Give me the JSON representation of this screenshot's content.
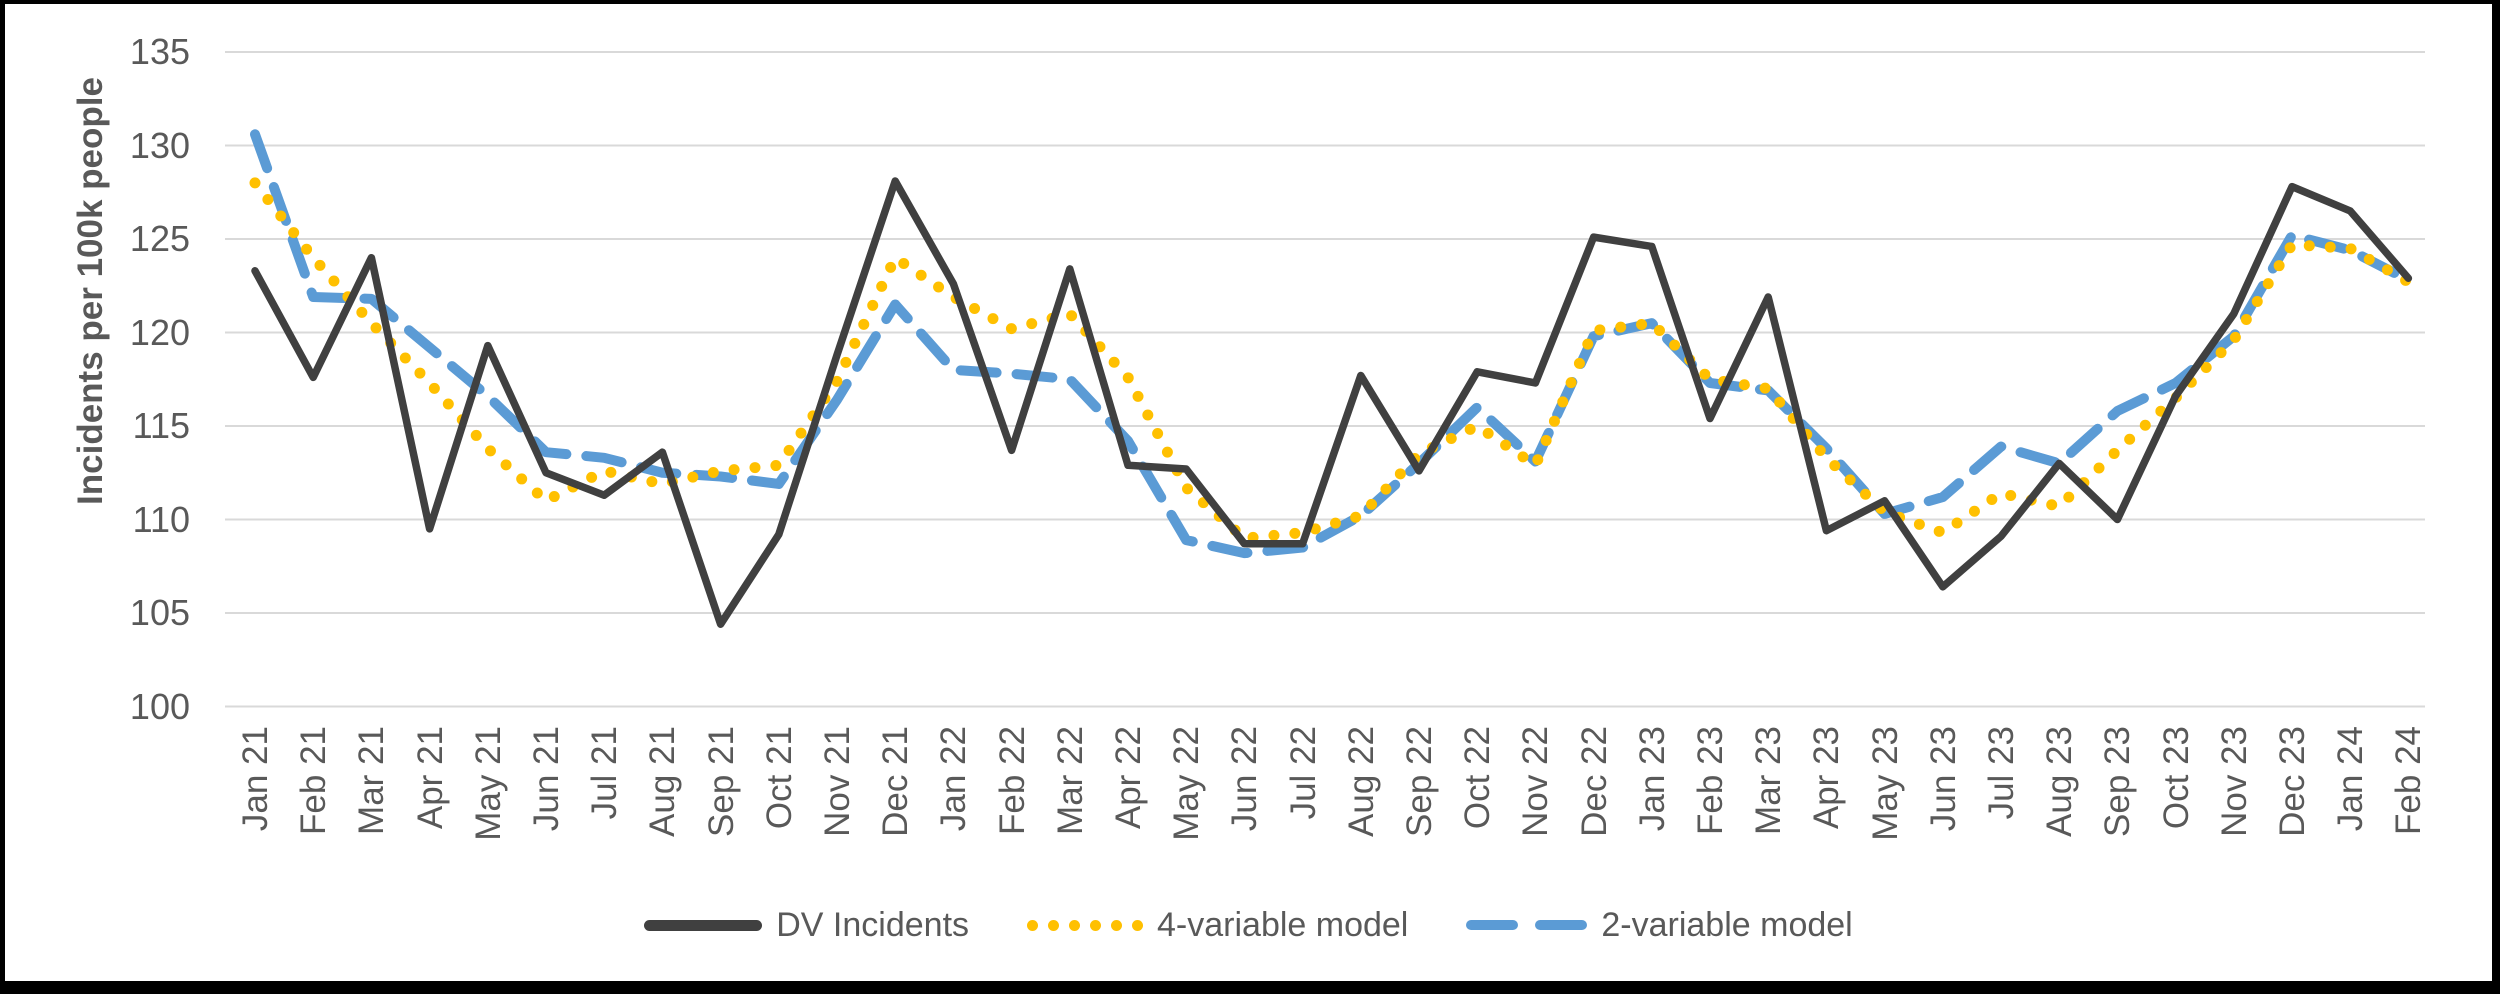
{
  "chart_data": {
    "type": "line",
    "title": "",
    "xlabel": "",
    "ylabel": "Incidents per 100k people",
    "ylim": [
      100,
      135
    ],
    "yticks": [
      135,
      130,
      125,
      120,
      115,
      110,
      105,
      100
    ],
    "grid": true,
    "legend_position": "bottom",
    "categories": [
      "Jan 21",
      "Feb 21",
      "Mar 21",
      "Apr 21",
      "May 21",
      "Jun 21",
      "Jul 21",
      "Aug 21",
      "Sep 21",
      "Oct 21",
      "Nov 21",
      "Dec 21",
      "Jan 22",
      "Feb 22",
      "Mar 22",
      "Apr 22",
      "May 22",
      "Jun 22",
      "Jul 22",
      "Aug 22",
      "Sep 22",
      "Oct 22",
      "Nov 22",
      "Dec 22",
      "Jan 23",
      "Feb 23",
      "Mar 23",
      "Apr 23",
      "May 23",
      "Jun 23",
      "Jul 23",
      "Aug 23",
      "Sep 23",
      "Oct 23",
      "Nov 23",
      "Dec 23",
      "Jan 24",
      "Feb 24"
    ],
    "series": [
      {
        "name": "DV Incidents",
        "style": "solid",
        "color": "#404040",
        "values": [
          123.3,
          117.6,
          124.0,
          109.5,
          119.3,
          112.5,
          111.3,
          113.6,
          104.4,
          109.2,
          118.8,
          128.1,
          122.6,
          113.7,
          123.4,
          112.9,
          112.7,
          108.7,
          108.7,
          117.7,
          112.6,
          117.9,
          117.3,
          125.1,
          124.6,
          115.4,
          121.9,
          109.4,
          111.0,
          106.4,
          109.1,
          113.0,
          110.0,
          116.6,
          121.0,
          127.8,
          126.5,
          122.9
        ]
      },
      {
        "name": "4-variable model",
        "style": "dotted",
        "color": "#FFC000",
        "values": [
          128.0,
          124.0,
          120.5,
          117.3,
          113.8,
          111.0,
          112.6,
          111.9,
          112.6,
          112.9,
          117.4,
          124.0,
          121.9,
          120.2,
          121.0,
          117.6,
          111.7,
          109.0,
          109.3,
          110.2,
          113.5,
          115.0,
          112.9,
          120.1,
          120.5,
          117.5,
          117.0,
          113.3,
          110.4,
          109.3,
          111.4,
          110.7,
          113.7,
          116.5,
          119.6,
          124.7,
          124.5,
          122.7
        ]
      },
      {
        "name": "2-variable model",
        "style": "dashed",
        "color": "#5B9BD5",
        "values": [
          130.6,
          121.9,
          121.8,
          119.2,
          116.6,
          113.6,
          113.3,
          112.5,
          112.3,
          111.9,
          116.4,
          121.5,
          118.0,
          117.8,
          117.5,
          114.2,
          108.9,
          108.2,
          108.5,
          110.2,
          113.0,
          116.0,
          113.1,
          119.8,
          120.5,
          117.3,
          116.9,
          113.8,
          110.3,
          111.2,
          113.9,
          113.0,
          115.8,
          117.3,
          119.8,
          125.2,
          124.4,
          122.8
        ]
      }
    ],
    "gridline_color": "#D9D9D9",
    "text_color": "#595959"
  }
}
